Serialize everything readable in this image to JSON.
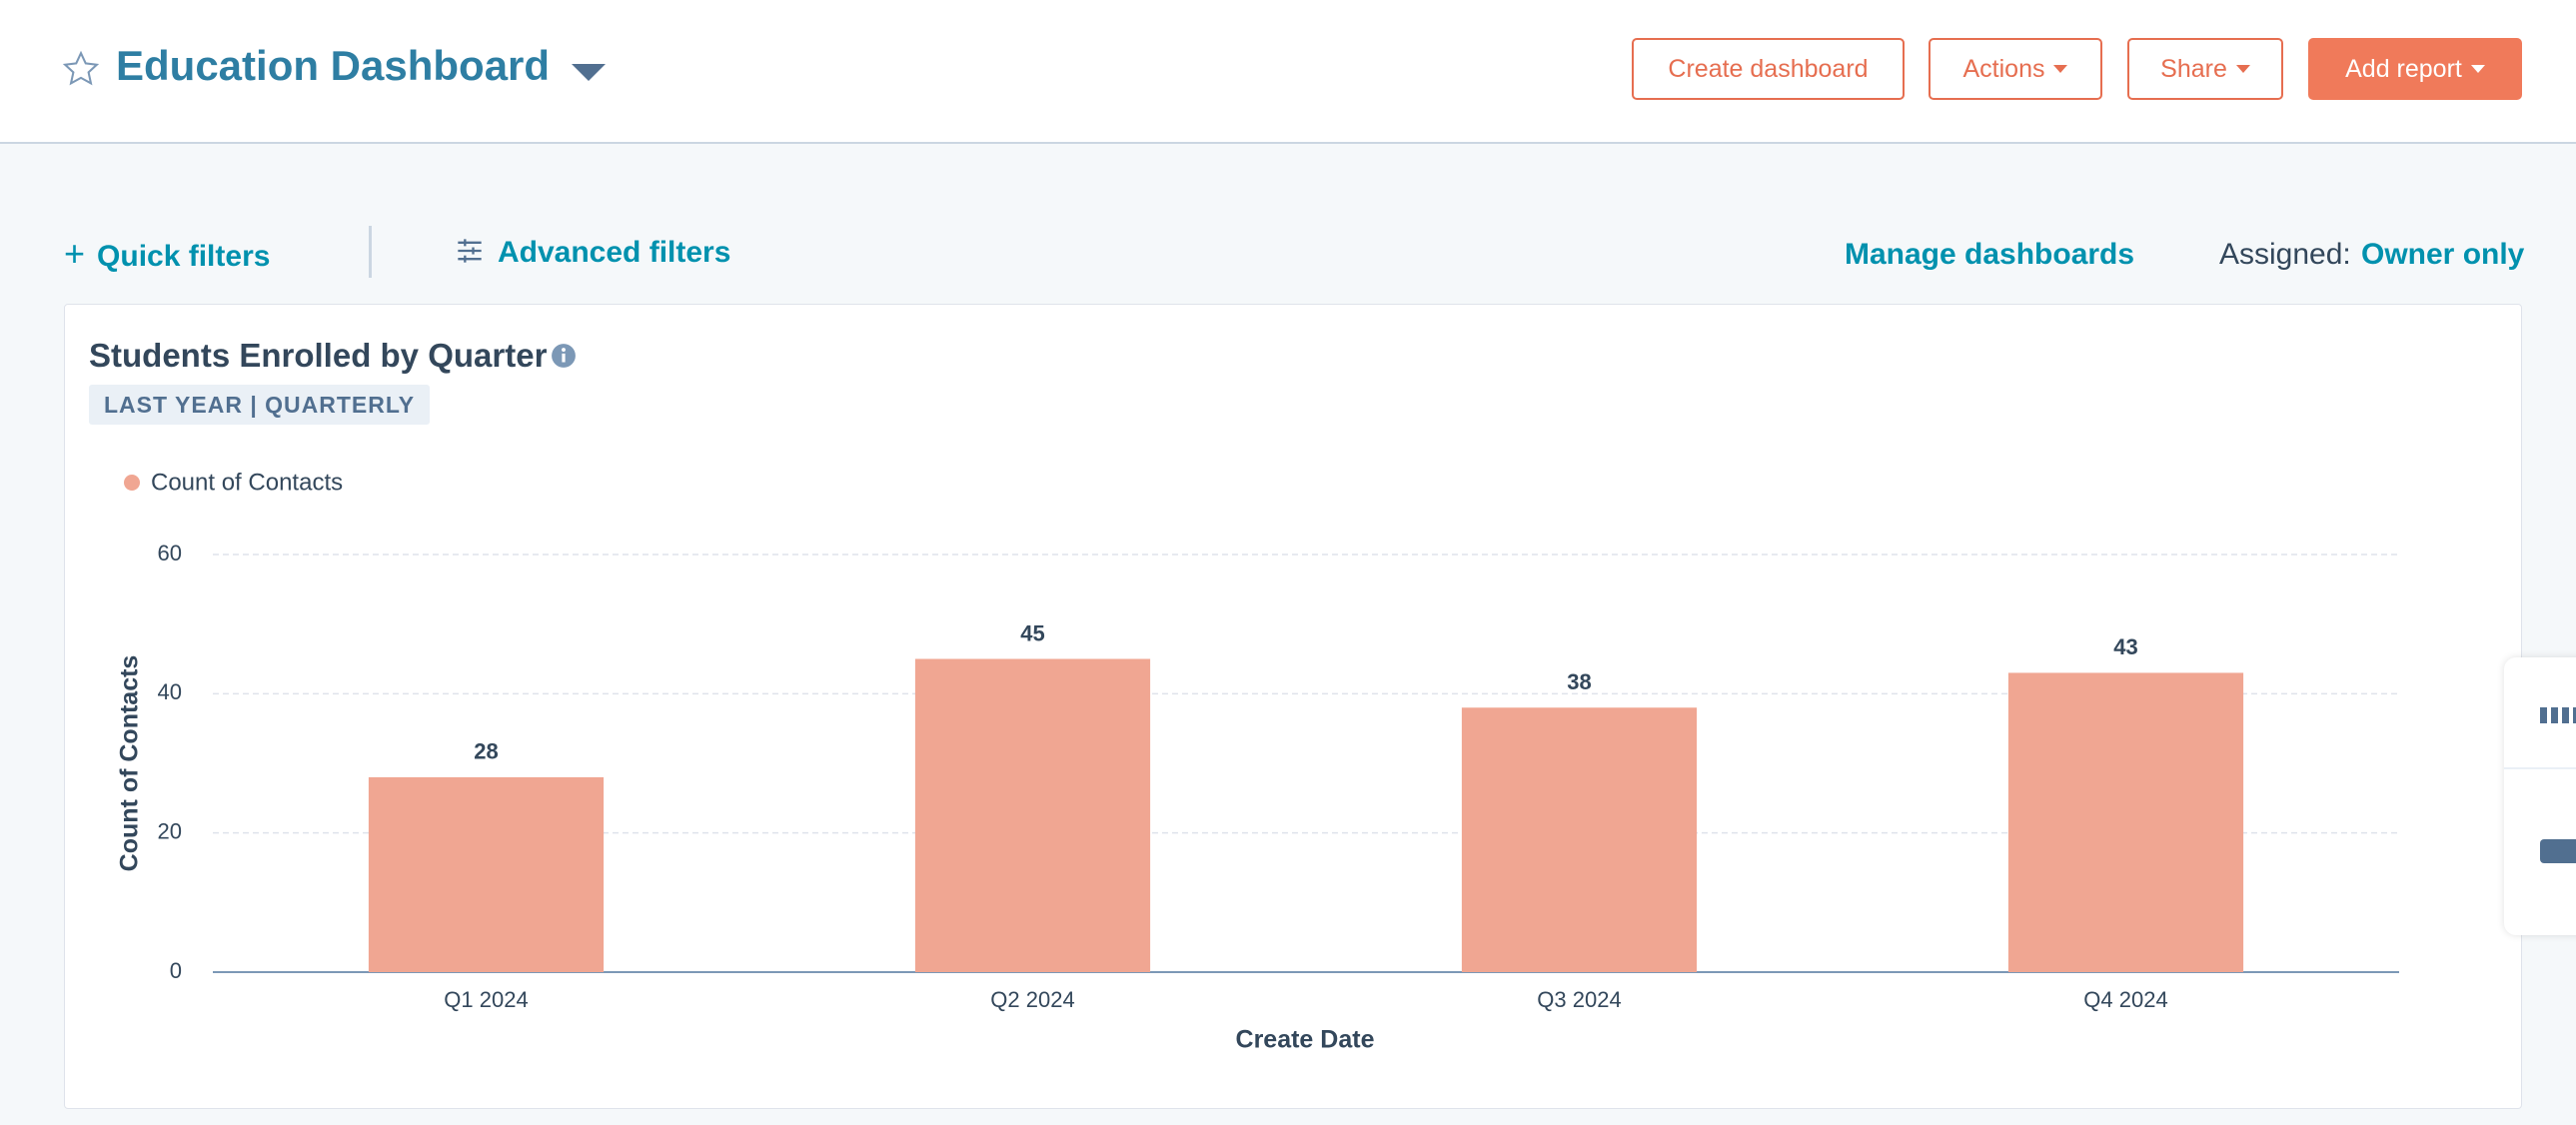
{
  "header": {
    "title": "Education Dashboard",
    "buttons": [
      "Create dashboard",
      "Actions",
      "Share",
      "Add report"
    ]
  },
  "filters": {
    "quick": "Quick filters",
    "advanced": "Advanced filters",
    "manage": "Manage dashboards",
    "assigned_label": "Assigned:",
    "assigned_value": "Owner only"
  },
  "card": {
    "title": "Students Enrolled by Quarter",
    "tag": "LAST YEAR | QUARTERLY"
  },
  "chart_data": {
    "type": "bar",
    "x_label": "Create Date",
    "y_label": "Count of Contacts",
    "categories": [
      "Q1 2024",
      "Q2 2024",
      "Q3 2024",
      "Q4 2024"
    ],
    "series": [
      {
        "name": "Count of Contacts",
        "color": "#f0a692",
        "values": [
          28,
          45,
          38,
          43
        ]
      }
    ],
    "ylim": [
      0,
      60
    ],
    "yticks": [
      0,
      20,
      40,
      60
    ],
    "grid": true
  }
}
